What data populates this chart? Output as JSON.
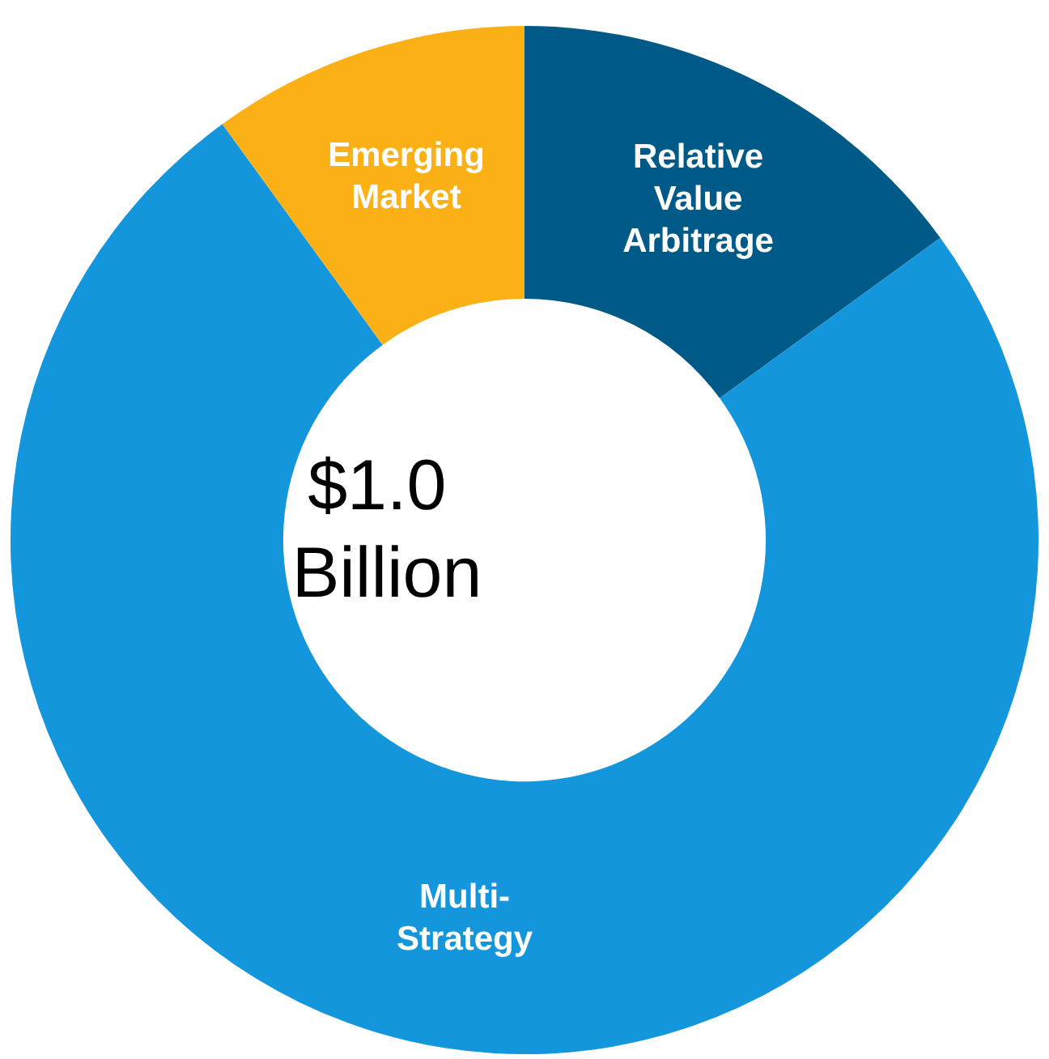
{
  "chart_data": {
    "type": "donut",
    "title": "$1.0 Billion",
    "categories": [
      "Relative Value Arbitrage",
      "Multi-Strategy",
      "Emerging Market"
    ],
    "values": [
      15,
      75,
      10
    ],
    "colors": [
      "#005a87",
      "#1496dc",
      "#fbb116"
    ],
    "legend": false
  }
}
